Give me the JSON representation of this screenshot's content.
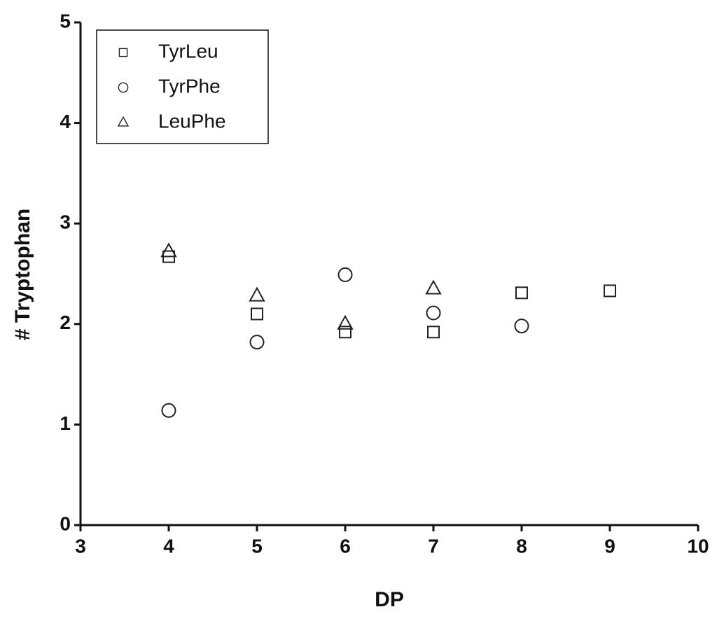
{
  "chart_data": {
    "type": "scatter",
    "x_label": "DP",
    "y_label": "# Tryptophan",
    "xlim": [
      3,
      10
    ],
    "xticks": [
      3,
      4,
      5,
      6,
      7,
      8,
      9,
      10
    ],
    "ylim": [
      0,
      5
    ],
    "yticks": [
      0,
      1,
      2,
      3,
      4,
      5
    ],
    "legend": "upper left",
    "series": [
      {
        "name": "TyrLeu",
        "marker": "square",
        "color": "#222222",
        "x": [
          4,
          5,
          6,
          7,
          8,
          9
        ],
        "values": [
          2.67,
          2.1,
          1.92,
          1.92,
          2.31,
          2.33
        ]
      },
      {
        "name": "TyrPhe",
        "marker": "circle",
        "color": "#222222",
        "x": [
          4,
          5,
          6,
          7,
          8
        ],
        "values": [
          1.14,
          1.82,
          2.49,
          2.11,
          1.98
        ]
      },
      {
        "name": "LeuPhe",
        "marker": "triangle",
        "color": "#222222",
        "x": [
          4,
          5,
          6,
          7
        ],
        "values": [
          2.72,
          2.28,
          2.0,
          2.35
        ]
      }
    ]
  }
}
